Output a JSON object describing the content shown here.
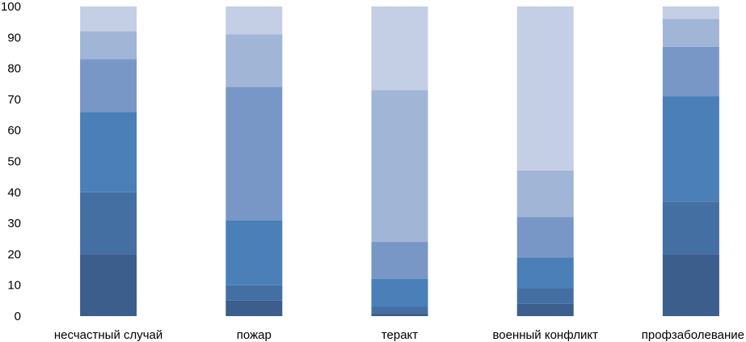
{
  "chart_data": {
    "type": "bar",
    "stacked": true,
    "categories": [
      "несчастный случай",
      "пожар",
      "теракт",
      "военный конфликт",
      "профзаболевание"
    ],
    "series": [
      {
        "color": "#3b5e8d",
        "values": [
          20,
          5,
          1,
          4,
          20
        ]
      },
      {
        "color": "#436fa3",
        "values": [
          20,
          5,
          2,
          5,
          17
        ]
      },
      {
        "color": "#4a7fb7",
        "values": [
          26,
          21,
          9,
          10,
          34
        ]
      },
      {
        "color": "#7897c7",
        "values": [
          17,
          43,
          12,
          13,
          16
        ]
      },
      {
        "color": "#a1b5d7",
        "values": [
          9,
          17,
          49,
          15,
          9
        ]
      },
      {
        "color": "#c4cfe5",
        "values": [
          8,
          9,
          27,
          53,
          4
        ]
      }
    ],
    "ylim": [
      0,
      100
    ],
    "yticks": [
      0,
      10,
      20,
      30,
      40,
      50,
      60,
      70,
      80,
      90,
      100
    ],
    "grid": false,
    "legend": "none"
  }
}
